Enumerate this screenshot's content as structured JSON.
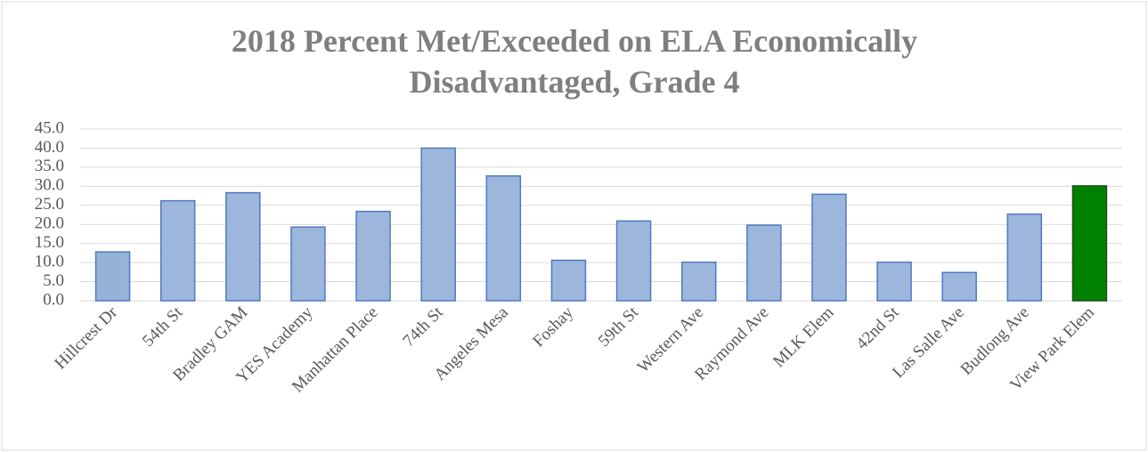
{
  "chart_data": {
    "type": "bar",
    "title": [
      "2018  Percent Met/Exceeded on ELA Economically",
      "Disadvantaged, Grade 4"
    ],
    "categories": [
      "Hillcrest Dr",
      "54th St",
      "Bradley GAM",
      "YES Academy",
      "Manhattan Place",
      "74th St",
      "Angeles Mesa",
      "Foshay",
      "59th St",
      "Western Ave",
      "Raymond Ave",
      "MLK Elem",
      "42nd St",
      "Las Salle Ave",
      "Budlong Ave",
      "View Park Elem"
    ],
    "values": [
      12.8,
      26.2,
      28.3,
      19.3,
      23.4,
      40.0,
      32.7,
      10.6,
      20.9,
      10.1,
      19.8,
      27.9,
      10.1,
      7.4,
      22.7,
      30.1
    ],
    "colors": [
      "#95b3d7",
      "#9db6dc",
      "#9db6dc",
      "#9db6dc",
      "#9db6dc",
      "#9db6dc",
      "#9db6dc",
      "#9db6dc",
      "#9db6dc",
      "#9db6dc",
      "#9db6dc",
      "#9db6dc",
      "#9db6dc",
      "#9db6dc",
      "#9db6dc",
      "#008000"
    ],
    "ylim": [
      0,
      45
    ],
    "yticks": [
      {
        "value": 0,
        "label": "0.0"
      },
      {
        "value": 5,
        "label": "5.0"
      },
      {
        "value": 10,
        "label": "10.0"
      },
      {
        "value": 15,
        "label": "15.0"
      },
      {
        "value": 20,
        "label": "20.0"
      },
      {
        "value": 25,
        "label": "25.0"
      },
      {
        "value": 30,
        "label": "30.0"
      },
      {
        "value": 35,
        "label": "35.0"
      },
      {
        "value": 40,
        "label": "40.0"
      },
      {
        "value": 45,
        "label": "45.0"
      }
    ],
    "grid": true
  }
}
